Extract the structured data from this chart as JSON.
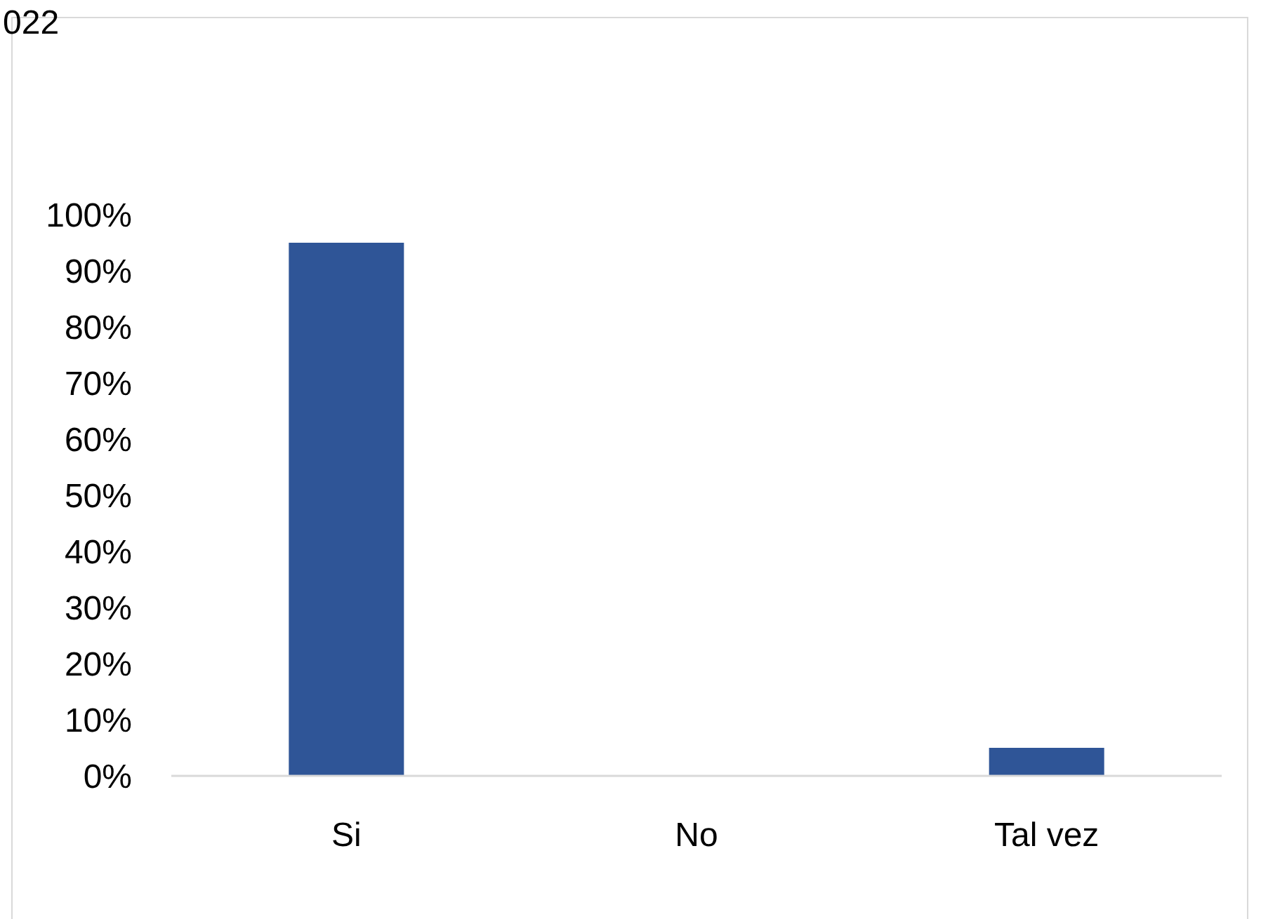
{
  "chart_data": {
    "type": "bar",
    "title": "022",
    "categories": [
      "Si",
      "No",
      "Tal vez"
    ],
    "values": [
      95,
      0,
      5
    ],
    "color": "#2f5597",
    "ylim": [
      0,
      100
    ],
    "yticks": [
      {
        "value": 0,
        "label": "0%"
      },
      {
        "value": 10,
        "label": "10%"
      },
      {
        "value": 20,
        "label": "20%"
      },
      {
        "value": 30,
        "label": "30%"
      },
      {
        "value": 40,
        "label": "40%"
      },
      {
        "value": 50,
        "label": "50%"
      },
      {
        "value": 60,
        "label": "60%"
      },
      {
        "value": 70,
        "label": "70%"
      },
      {
        "value": 80,
        "label": "80%"
      },
      {
        "value": 90,
        "label": "90%"
      },
      {
        "value": 100,
        "label": "100%"
      }
    ],
    "grid": false
  }
}
